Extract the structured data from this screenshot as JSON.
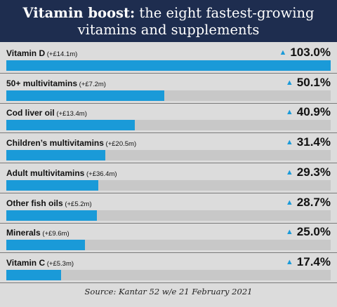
{
  "title": {
    "bold": "Vitamin boost:",
    "rest": " the eight fastest-growing",
    "line2": "vitamins and supplements"
  },
  "source": "Source: Kantar 52 w/e 21 February 2021",
  "colors": {
    "header_bg": "#1e2d4f",
    "bar": "#1a9ad8",
    "track": "#c8c8c8",
    "background": "#dcdcdc",
    "arrow": "#1a9ad8"
  },
  "chart_data": {
    "type": "bar",
    "orientation": "horizontal",
    "categories": [
      "Vitamin D",
      "50+ multivitamins",
      "Cod liver oil",
      "Children’s multivitamins",
      "Adult multivitamins",
      "Other fish oils",
      "Minerals",
      "Vitamin C"
    ],
    "sales_change": [
      "(+£14.1m)",
      "(+£7.2m)",
      "(+£13.4m)",
      "(+£20.5m)",
      "(+£36.4m)",
      "(+£5.2m)",
      "(+£9.6m)",
      "(+£5.3m)"
    ],
    "values": [
      103.0,
      50.1,
      40.9,
      31.4,
      29.3,
      28.7,
      25.0,
      17.4
    ],
    "value_labels": [
      "103.0%",
      "50.1%",
      "40.9%",
      "31.4%",
      "29.3%",
      "28.7%",
      "25.0%",
      "17.4%"
    ],
    "xlim": [
      0,
      103.0
    ],
    "title": "Vitamin boost: the eight fastest-growing vitamins and supplements"
  }
}
